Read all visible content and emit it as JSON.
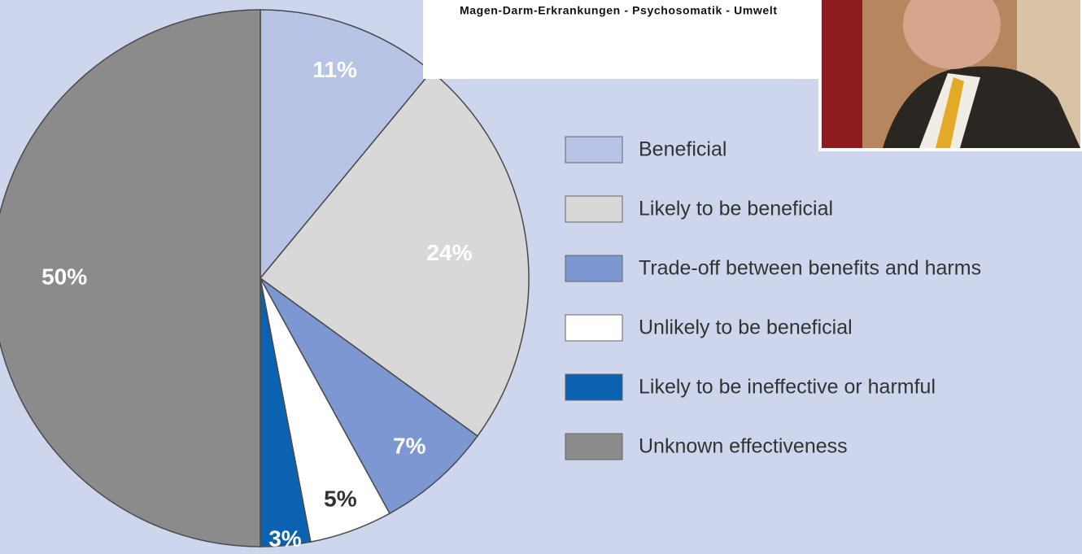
{
  "chart_data": {
    "type": "pie",
    "categories": [
      "Beneficial",
      "Likely to be beneficial",
      "Trade-off between benefits and harms",
      "Unlikely to be beneficial",
      "Likely to be ineffective or harmful",
      "Unknown effectiveness"
    ],
    "values": [
      11,
      24,
      7,
      5,
      3,
      50
    ],
    "value_labels": [
      "11%",
      "24%",
      "7%",
      "5%",
      "3%",
      "50%"
    ],
    "colors": [
      "#b7c4e6",
      "#d8d8d8",
      "#7c97d2",
      "#ffffff",
      "#0a62b0",
      "#8b8b8b"
    ],
    "legend": "right"
  },
  "banner": {
    "text": "Magen-Darm-Erkrankungen - Psychosomatik - Umwelt"
  }
}
